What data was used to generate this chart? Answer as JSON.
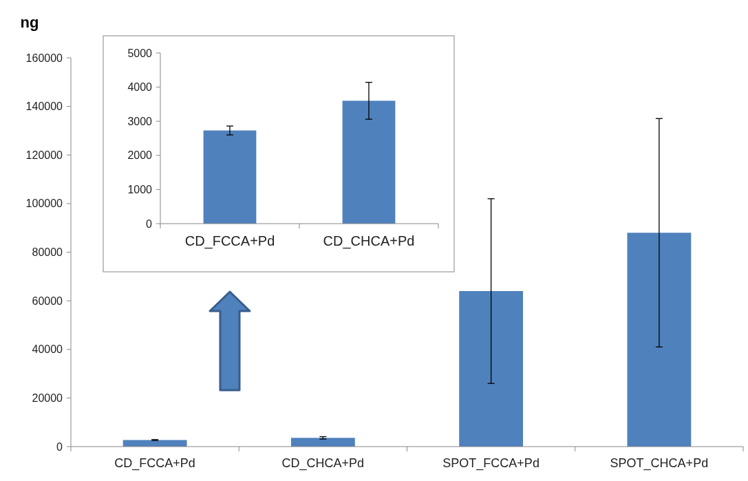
{
  "chart_data": [
    {
      "type": "bar",
      "ylabel": "ng",
      "categories": [
        "CD_FCCA+Pd",
        "CD_CHCA+Pd",
        "SPOT_FCCA+Pd",
        "SPOT_CHCA+Pd"
      ],
      "values": [
        2700,
        3600,
        64000,
        88000
      ],
      "errors": [
        200,
        500,
        38000,
        47000
      ],
      "color": "#4f81bd",
      "ylim": [
        0,
        160000
      ],
      "yticks": [
        0,
        20000,
        40000,
        60000,
        80000,
        100000,
        120000,
        140000,
        160000
      ],
      "grid": false
    },
    {
      "type": "bar",
      "categories": [
        "CD_FCCA+Pd",
        "CD_CHCA+Pd"
      ],
      "values": [
        2730,
        3600
      ],
      "errors": [
        130,
        540
      ],
      "color": "#4f81bd",
      "ylim": [
        0,
        5000
      ],
      "yticks": [
        0,
        1000,
        2000,
        3000,
        4000,
        5000
      ],
      "grid": false
    }
  ]
}
